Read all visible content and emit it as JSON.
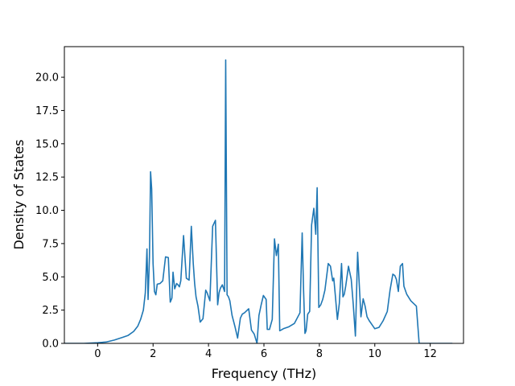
{
  "chart_data": {
    "type": "line",
    "title": "",
    "xlabel": "Frequency (THz)",
    "ylabel": "Density of States",
    "xlim": [
      -1.2,
      13.2
    ],
    "ylim": [
      0,
      22.3
    ],
    "xticks": [
      0,
      2,
      4,
      6,
      8,
      10,
      12
    ],
    "xtick_labels": [
      "0",
      "2",
      "4",
      "6",
      "8",
      "10",
      "12"
    ],
    "yticks": [
      0,
      2.5,
      5,
      7.5,
      10,
      12.5,
      15,
      17.5,
      20
    ],
    "ytick_labels": [
      "0.0",
      "2.5",
      "5.0",
      "7.5",
      "10.0",
      "12.5",
      "15.0",
      "17.5",
      "20.0"
    ],
    "grid": false,
    "legend": "none",
    "series": [
      {
        "color": "#1f77b4",
        "x": [
          -1.2,
          -0.5,
          0,
          0.3,
          0.6,
          0.9,
          1.1,
          1.3,
          1.45,
          1.55,
          1.65,
          1.72,
          1.78,
          1.82,
          1.87,
          1.91,
          1.95,
          2.0,
          2.05,
          2.1,
          2.15,
          2.25,
          2.35,
          2.45,
          2.55,
          2.62,
          2.68,
          2.72,
          2.78,
          2.85,
          2.9,
          2.95,
          3.0,
          3.1,
          3.2,
          3.3,
          3.38,
          3.45,
          3.5,
          3.55,
          3.62,
          3.7,
          3.8,
          3.9,
          3.95,
          4.05,
          4.15,
          4.25,
          4.33,
          4.38,
          4.43,
          4.5,
          4.58,
          4.62,
          4.67,
          4.72,
          4.77,
          4.85,
          4.95,
          5.05,
          5.15,
          5.22,
          5.3,
          5.45,
          5.55,
          5.65,
          5.75,
          5.82,
          5.9,
          5.98,
          6.08,
          6.12,
          6.2,
          6.3,
          6.38,
          6.45,
          6.52,
          6.57,
          6.62,
          6.7,
          6.9,
          7.1,
          7.3,
          7.38,
          7.43,
          7.48,
          7.52,
          7.58,
          7.65,
          7.72,
          7.8,
          7.87,
          7.92,
          7.98,
          8.05,
          8.12,
          8.2,
          8.32,
          8.4,
          8.48,
          8.52,
          8.58,
          8.65,
          8.72,
          8.8,
          8.85,
          8.9,
          8.95,
          9.05,
          9.15,
          9.22,
          9.3,
          9.38,
          9.45,
          9.5,
          9.58,
          9.65,
          9.72,
          9.8,
          9.9,
          10.0,
          10.15,
          10.3,
          10.45,
          10.55,
          10.65,
          10.72,
          10.78,
          10.85,
          10.92,
          11.0,
          11.05,
          11.15,
          11.3,
          11.5,
          11.6,
          12.0,
          12.8
        ],
        "y": [
          0,
          0,
          0.05,
          0.1,
          0.25,
          0.45,
          0.6,
          0.9,
          1.3,
          1.8,
          2.5,
          3.8,
          7.1,
          3.3,
          6.5,
          12.9,
          11.6,
          6.0,
          3.9,
          3.65,
          4.45,
          4.5,
          4.7,
          6.5,
          6.45,
          3.1,
          3.4,
          5.35,
          4.1,
          4.5,
          4.4,
          4.25,
          4.7,
          8.1,
          4.9,
          4.75,
          8.8,
          6.0,
          4.5,
          3.5,
          2.8,
          1.6,
          1.85,
          4.0,
          3.8,
          3.2,
          8.8,
          9.25,
          2.9,
          3.8,
          4.15,
          4.4,
          3.9,
          21.3,
          3.65,
          3.5,
          3.2,
          2.1,
          1.3,
          0.4,
          1.9,
          2.2,
          2.3,
          2.6,
          1.0,
          0.7,
          0,
          2.1,
          2.9,
          3.6,
          3.3,
          1.05,
          1.05,
          1.8,
          7.85,
          6.6,
          7.45,
          0.95,
          1.0,
          1.1,
          1.25,
          1.5,
          2.3,
          8.3,
          4.0,
          0.75,
          0.95,
          2.2,
          2.4,
          8.9,
          10.15,
          8.2,
          11.7,
          2.7,
          2.9,
          3.3,
          4.0,
          6.0,
          5.8,
          4.7,
          4.9,
          3.5,
          1.8,
          3.0,
          6.0,
          3.5,
          3.7,
          4.3,
          5.8,
          4.8,
          3.0,
          0.55,
          6.85,
          4.0,
          2.0,
          3.35,
          2.8,
          2.0,
          1.7,
          1.4,
          1.1,
          1.2,
          1.7,
          2.4,
          4.0,
          5.2,
          5.1,
          4.8,
          3.9,
          5.8,
          6.0,
          4.3,
          3.7,
          3.2,
          2.8,
          0,
          0,
          0
        ]
      }
    ]
  }
}
